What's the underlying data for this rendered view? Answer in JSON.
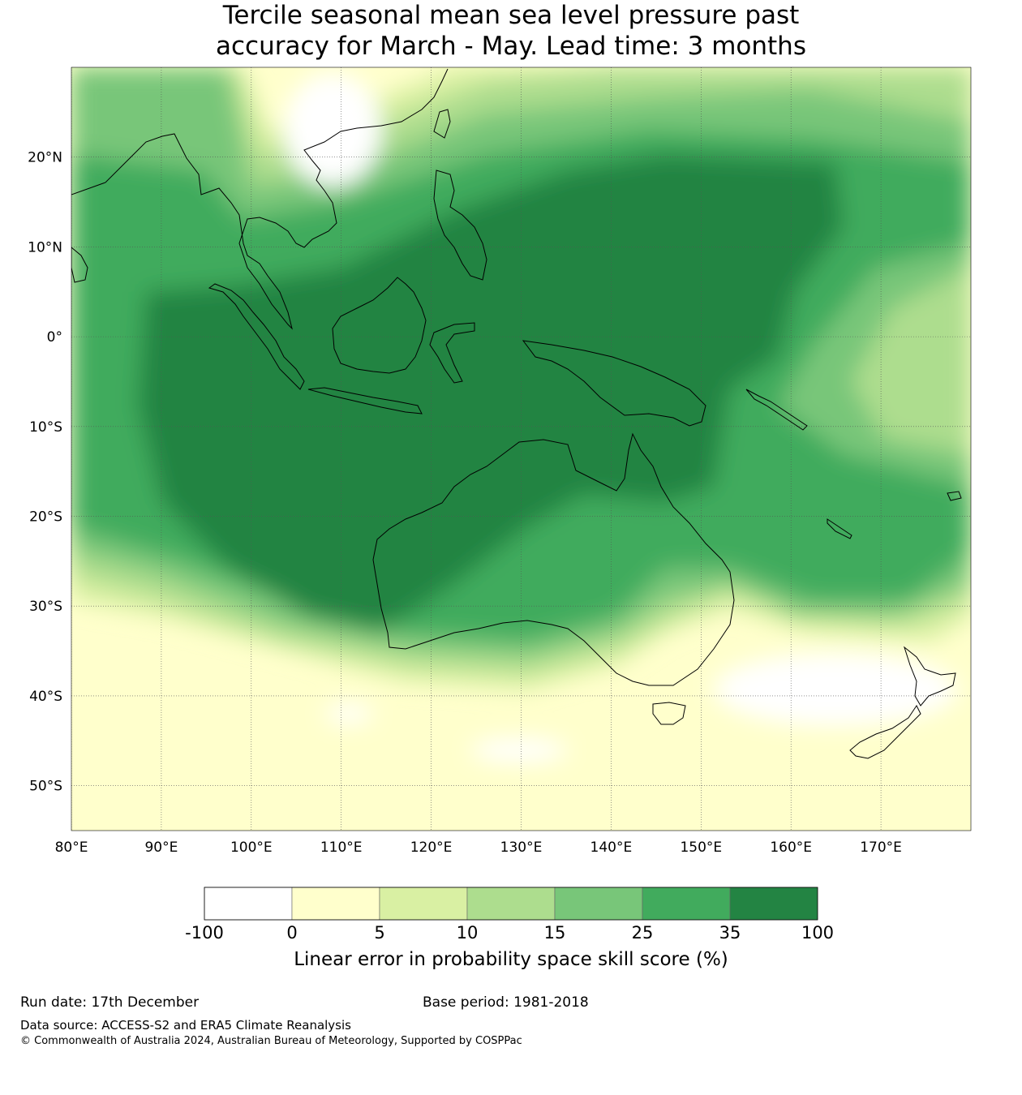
{
  "title": {
    "line1": "Tercile seasonal mean sea level pressure past",
    "line2": "accuracy for March - May. Lead time: 3 months"
  },
  "map": {
    "lon_range": [
      80,
      180
    ],
    "lat_range": [
      -55,
      30
    ],
    "lon_ticks": [
      "80°E",
      "90°E",
      "100°E",
      "110°E",
      "120°E",
      "130°E",
      "140°E",
      "150°E",
      "160°E",
      "170°E"
    ],
    "lat_ticks": [
      "20°N",
      "10°N",
      "0°",
      "10°S",
      "20°S",
      "30°S",
      "40°S",
      "50°S"
    ]
  },
  "colorbar": {
    "colors": [
      "#ffffff",
      "#ffffcc",
      "#d9f0a3",
      "#addd8e",
      "#78c679",
      "#41ab5d",
      "#238443"
    ],
    "labels": [
      "-100",
      "0",
      "5",
      "10",
      "15",
      "25",
      "35",
      "100"
    ],
    "title": "Linear error in probability space skill score (%)"
  },
  "footer": {
    "run_date": "Run date: 17th December",
    "base_period": "Base period: 1981-2018",
    "data_source": "Data source: ACCESS-S2 and ERA5 Climate Reanalysis",
    "copyright": "© Commonwealth of Australia 2024, Australian Bureau of Meteorology, Supported by COSPPac"
  }
}
